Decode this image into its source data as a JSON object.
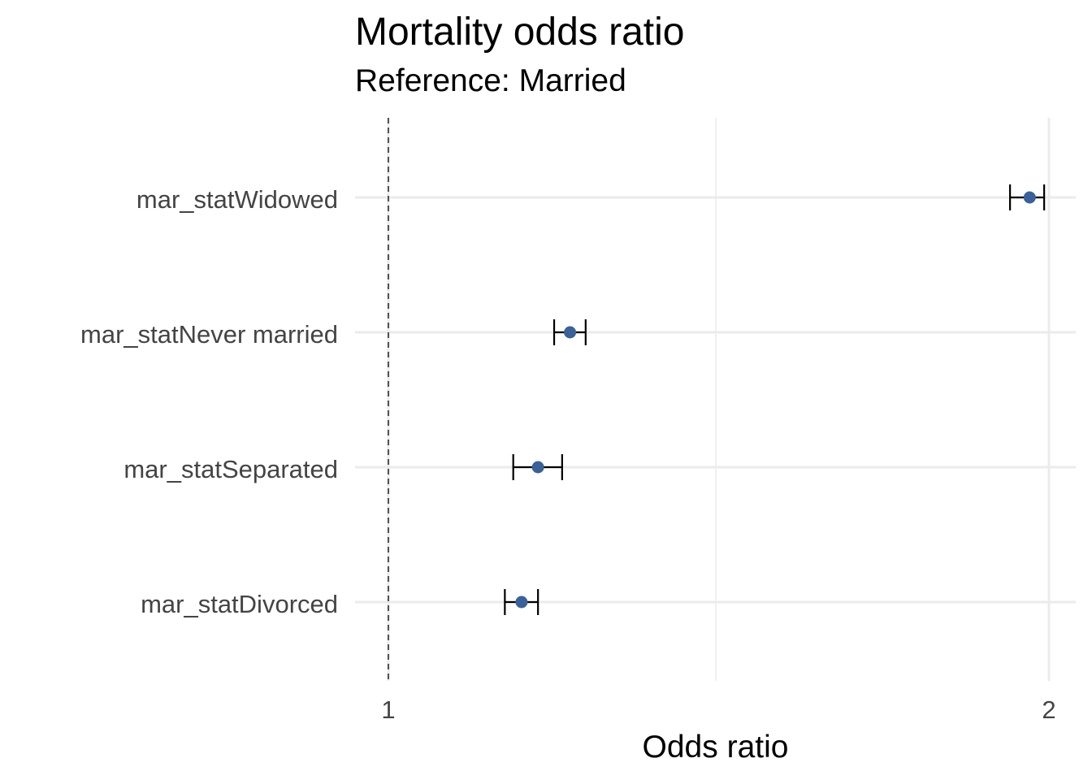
{
  "chart_data": {
    "type": "scatter",
    "title": "Mortality odds ratio",
    "subtitle": "Reference: Married",
    "xlabel": "Odds ratio",
    "ylabel": "",
    "x_scale": "log",
    "xlim": [
      0.97,
      2.04
    ],
    "x_ticks": [
      1,
      2
    ],
    "x_tick_labels": [
      "1",
      "2"
    ],
    "x_minor_gridlines": [
      1.41
    ],
    "reference_line": 1,
    "grid": true,
    "legend": "none",
    "point_color": "#3a6198",
    "errorbar_color": "#000000",
    "categories": [
      "mar_statWidowed",
      "mar_statNever married",
      "mar_statSeparated",
      "mar_statDivorced"
    ],
    "estimates": [
      1.96,
      1.21,
      1.17,
      1.15
    ],
    "ci_low": [
      1.92,
      1.19,
      1.14,
      1.13
    ],
    "ci_high": [
      1.99,
      1.23,
      1.2,
      1.17
    ]
  }
}
